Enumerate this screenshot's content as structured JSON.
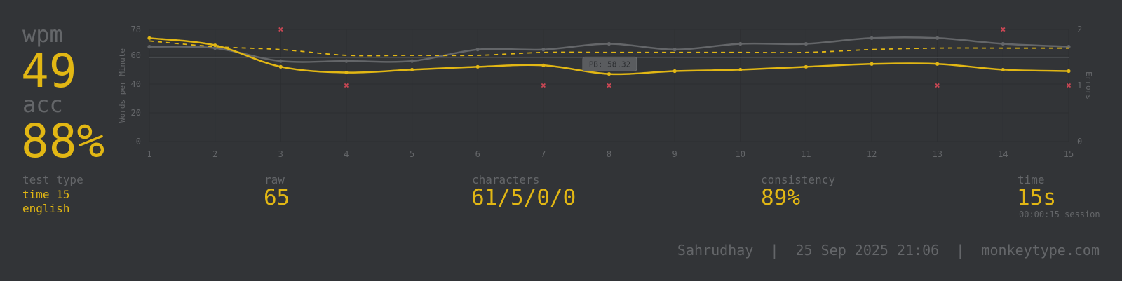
{
  "stats": {
    "wpm_label": "wpm",
    "wpm_value": "49",
    "acc_label": "acc",
    "acc_value": "88%"
  },
  "details": {
    "test_type_label": "test type",
    "test_type_line1": "time 15",
    "test_type_line2": "english",
    "raw_label": "raw",
    "raw_value": "65",
    "characters_label": "characters",
    "characters_value": "61/5/0/0",
    "consistency_label": "consistency",
    "consistency_value": "89%",
    "time_label": "time",
    "time_value": "15s",
    "time_session": "00:00:15 session"
  },
  "footer": {
    "user": "Sahrudhay",
    "date": "25 Sep 2025 21:06",
    "site": "monkeytype.com"
  },
  "colors": {
    "background": "#323437",
    "accent": "#e2b714",
    "muted": "#646669",
    "error": "#ca4754"
  },
  "chart_data": {
    "type": "line",
    "ylabel": "Words per Minute",
    "y2label": "Errors",
    "ylim": [
      0,
      78
    ],
    "y2lim": [
      0,
      2
    ],
    "y_ticks": [
      "0",
      "20",
      "40",
      "60",
      "78"
    ],
    "y2_ticks": [
      "0",
      "1",
      "2"
    ],
    "x": [
      1,
      2,
      3,
      4,
      5,
      6,
      7,
      8,
      9,
      10,
      11,
      12,
      13,
      14,
      15
    ],
    "pb_label": "PB: 58.32",
    "pb_value": 58.32,
    "series": [
      {
        "values": [
          72,
          67,
          52,
          48,
          50,
          52,
          53,
          47,
          49,
          50,
          52,
          54,
          54,
          50,
          49
        ]
      },
      {
        "values": [
          66,
          65,
          56,
          56,
          56,
          64,
          64,
          68,
          64,
          68,
          68,
          72,
          72,
          68,
          66
        ]
      },
      {
        "values": [
          70,
          66,
          64,
          60,
          60,
          60,
          62,
          62,
          62,
          62,
          62,
          64,
          65,
          65,
          65
        ]
      }
    ],
    "errors": [
      {
        "x": 3,
        "y": 2
      },
      {
        "x": 4,
        "y": 1
      },
      {
        "x": 7,
        "y": 1
      },
      {
        "x": 8,
        "y": 1
      },
      {
        "x": 13,
        "y": 1
      },
      {
        "x": 14,
        "y": 2
      },
      {
        "x": 15,
        "y": 1
      }
    ]
  }
}
